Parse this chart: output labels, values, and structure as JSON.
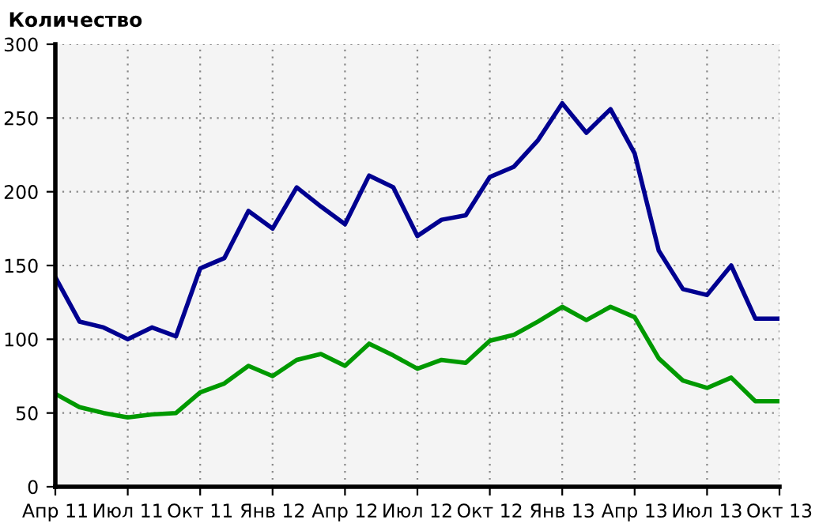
{
  "chart_data": {
    "type": "line",
    "title": "Количество",
    "categories": [
      "Апр 11",
      null,
      null,
      "Июл 11",
      null,
      null,
      "Окт 11",
      null,
      null,
      "Янв 12",
      null,
      null,
      "Апр 12",
      null,
      null,
      "Июл 12",
      null,
      null,
      "Окт 12",
      null,
      null,
      "Янв 13",
      null,
      null,
      "Апр 13",
      null,
      null,
      "Июл 13",
      null,
      null,
      "Окт 13"
    ],
    "series": [
      {
        "color": "#000090",
        "values": [
          142,
          112,
          108,
          100,
          108,
          102,
          148,
          155,
          187,
          175,
          203,
          190,
          178,
          211,
          203,
          170,
          181,
          184,
          210,
          217,
          235,
          260,
          240,
          256,
          226,
          160,
          134,
          130,
          150,
          114,
          114
        ]
      },
      {
        "color": "#009900",
        "values": [
          63,
          54,
          50,
          47,
          49,
          50,
          64,
          70,
          82,
          75,
          86,
          90,
          82,
          97,
          89,
          80,
          86,
          84,
          99,
          103,
          112,
          122,
          113,
          122,
          115,
          87,
          72,
          67,
          74,
          58,
          58
        ]
      }
    ],
    "ylim": [
      0,
      300
    ],
    "yticks": [
      0,
      50,
      100,
      150,
      200,
      250,
      300
    ],
    "grid": true,
    "marker": "none",
    "line_style": "solid"
  }
}
